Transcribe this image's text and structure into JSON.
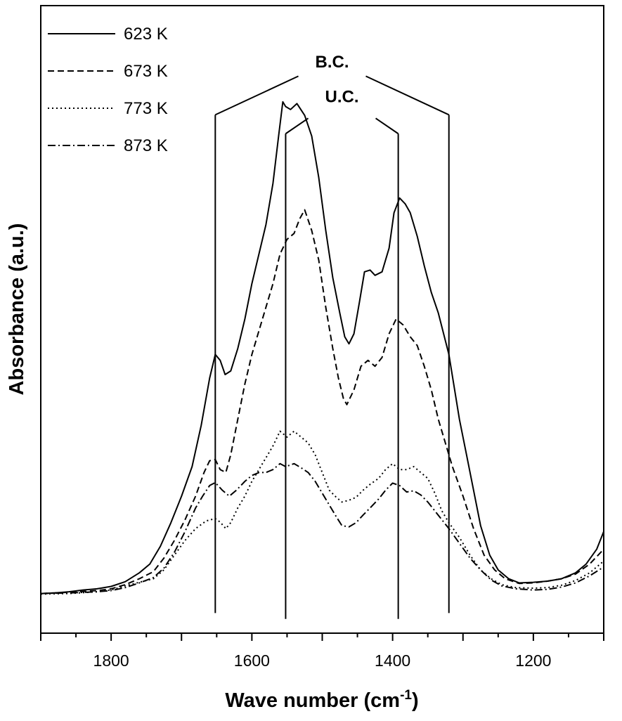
{
  "chart_data": {
    "type": "line",
    "xlabel": "Wave number (cm",
    "xlabel_sup": "-1",
    "xlabel_close": ")",
    "ylabel": "Absorbance (a.u.)",
    "xlim": [
      1900,
      1100
    ],
    "x_reversed": true,
    "xticks": [
      1800,
      1600,
      1400,
      1200
    ],
    "ylim": [
      0,
      100
    ],
    "y_ticks_labeled": false,
    "grid": false,
    "legend_position": "top-left",
    "series": [
      {
        "name": "623 K",
        "dash": "solid",
        "points": [
          [
            1900,
            3.5
          ],
          [
            1880,
            3.6
          ],
          [
            1860,
            3.8
          ],
          [
            1840,
            4.1
          ],
          [
            1820,
            4.3
          ],
          [
            1800,
            4.7
          ],
          [
            1780,
            5.5
          ],
          [
            1760,
            7.0
          ],
          [
            1745,
            8.5
          ],
          [
            1730,
            11.5
          ],
          [
            1715,
            15.5
          ],
          [
            1700,
            20.0
          ],
          [
            1685,
            25.0
          ],
          [
            1672,
            32.0
          ],
          [
            1660,
            40.0
          ],
          [
            1652,
            44.0
          ],
          [
            1645,
            43.0
          ],
          [
            1638,
            40.6
          ],
          [
            1630,
            41.2
          ],
          [
            1620,
            45.0
          ],
          [
            1610,
            50.0
          ],
          [
            1600,
            56.0
          ],
          [
            1590,
            61.0
          ],
          [
            1580,
            66.0
          ],
          [
            1570,
            73.0
          ],
          [
            1562,
            81.0
          ],
          [
            1556,
            86.8
          ],
          [
            1552,
            86.0
          ],
          [
            1545,
            85.5
          ],
          [
            1536,
            86.5
          ],
          [
            1525,
            84.5
          ],
          [
            1515,
            81.0
          ],
          [
            1505,
            74.0
          ],
          [
            1495,
            65.0
          ],
          [
            1485,
            57.0
          ],
          [
            1475,
            51.0
          ],
          [
            1468,
            47.0
          ],
          [
            1462,
            45.8
          ],
          [
            1455,
            47.5
          ],
          [
            1447,
            53.0
          ],
          [
            1440,
            58.0
          ],
          [
            1432,
            58.3
          ],
          [
            1425,
            57.4
          ],
          [
            1415,
            58.0
          ],
          [
            1405,
            62.0
          ],
          [
            1398,
            68.0
          ],
          [
            1390,
            70.5
          ],
          [
            1382,
            69.5
          ],
          [
            1375,
            68.0
          ],
          [
            1365,
            64.0
          ],
          [
            1355,
            59.0
          ],
          [
            1345,
            54.5
          ],
          [
            1335,
            51.0
          ],
          [
            1320,
            44.0
          ],
          [
            1305,
            33.0
          ],
          [
            1295,
            27.0
          ],
          [
            1285,
            21.0
          ],
          [
            1275,
            15.0
          ],
          [
            1262,
            10.0
          ],
          [
            1250,
            7.5
          ],
          [
            1235,
            6.0
          ],
          [
            1220,
            5.3
          ],
          [
            1200,
            5.4
          ],
          [
            1180,
            5.6
          ],
          [
            1160,
            6.0
          ],
          [
            1140,
            7.0
          ],
          [
            1125,
            8.5
          ],
          [
            1110,
            11.0
          ],
          [
            1100,
            14.0
          ]
        ]
      },
      {
        "name": "673 K",
        "dash": "dashed",
        "points": [
          [
            1900,
            3.5
          ],
          [
            1860,
            3.7
          ],
          [
            1820,
            4.0
          ],
          [
            1800,
            4.3
          ],
          [
            1780,
            5.0
          ],
          [
            1760,
            6.0
          ],
          [
            1740,
            7.2
          ],
          [
            1725,
            9.5
          ],
          [
            1710,
            12.5
          ],
          [
            1695,
            16.0
          ],
          [
            1680,
            20.0
          ],
          [
            1668,
            24.0
          ],
          [
            1660,
            26.0
          ],
          [
            1652,
            26.2
          ],
          [
            1645,
            24.5
          ],
          [
            1637,
            24.0
          ],
          [
            1630,
            27.0
          ],
          [
            1620,
            33.0
          ],
          [
            1610,
            39.0
          ],
          [
            1600,
            44.0
          ],
          [
            1590,
            48.0
          ],
          [
            1580,
            52.0
          ],
          [
            1570,
            56.0
          ],
          [
            1560,
            61.0
          ],
          [
            1550,
            63.5
          ],
          [
            1540,
            64.5
          ],
          [
            1532,
            67.0
          ],
          [
            1525,
            68.5
          ],
          [
            1515,
            65.0
          ],
          [
            1505,
            60.0
          ],
          [
            1495,
            52.0
          ],
          [
            1485,
            45.0
          ],
          [
            1477,
            40.0
          ],
          [
            1470,
            36.6
          ],
          [
            1465,
            35.5
          ],
          [
            1455,
            38.0
          ],
          [
            1445,
            42.0
          ],
          [
            1435,
            43.0
          ],
          [
            1425,
            42.0
          ],
          [
            1415,
            43.5
          ],
          [
            1405,
            47.5
          ],
          [
            1395,
            50.0
          ],
          [
            1385,
            49.0
          ],
          [
            1375,
            47.0
          ],
          [
            1365,
            45.5
          ],
          [
            1355,
            42.0
          ],
          [
            1345,
            38.0
          ],
          [
            1335,
            33.0
          ],
          [
            1325,
            29.0
          ],
          [
            1315,
            25.0
          ],
          [
            1300,
            20.0
          ],
          [
            1285,
            14.5
          ],
          [
            1270,
            10.0
          ],
          [
            1255,
            7.5
          ],
          [
            1240,
            6.0
          ],
          [
            1220,
            5.2
          ],
          [
            1200,
            5.3
          ],
          [
            1180,
            5.6
          ],
          [
            1160,
            6.0
          ],
          [
            1140,
            6.8
          ],
          [
            1120,
            8.5
          ],
          [
            1100,
            11.0
          ]
        ]
      },
      {
        "name": "773 K",
        "dash": "dotted",
        "points": [
          [
            1900,
            3.4
          ],
          [
            1860,
            3.5
          ],
          [
            1820,
            3.8
          ],
          [
            1800,
            4.1
          ],
          [
            1780,
            4.8
          ],
          [
            1760,
            5.4
          ],
          [
            1740,
            6.0
          ],
          [
            1725,
            7.5
          ],
          [
            1710,
            10.0
          ],
          [
            1695,
            12.5
          ],
          [
            1680,
            14.5
          ],
          [
            1665,
            15.8
          ],
          [
            1652,
            16.2
          ],
          [
            1645,
            15.6
          ],
          [
            1637,
            14.5
          ],
          [
            1630,
            15.5
          ],
          [
            1620,
            18.0
          ],
          [
            1610,
            20.0
          ],
          [
            1600,
            22.5
          ],
          [
            1590,
            24.5
          ],
          [
            1580,
            26.5
          ],
          [
            1570,
            28.5
          ],
          [
            1560,
            31.0
          ],
          [
            1550,
            30.0
          ],
          [
            1540,
            31.0
          ],
          [
            1530,
            30.0
          ],
          [
            1520,
            29.0
          ],
          [
            1510,
            27.0
          ],
          [
            1500,
            24.0
          ],
          [
            1490,
            21.0
          ],
          [
            1480,
            19.8
          ],
          [
            1472,
            19.0
          ],
          [
            1462,
            19.3
          ],
          [
            1452,
            19.8
          ],
          [
            1442,
            21.0
          ],
          [
            1432,
            22.0
          ],
          [
            1420,
            23.0
          ],
          [
            1410,
            24.5
          ],
          [
            1400,
            25.5
          ],
          [
            1390,
            24.5
          ],
          [
            1380,
            24.5
          ],
          [
            1370,
            25.0
          ],
          [
            1360,
            24.0
          ],
          [
            1350,
            23.0
          ],
          [
            1340,
            20.5
          ],
          [
            1330,
            17.5
          ],
          [
            1320,
            15.5
          ],
          [
            1305,
            13.0
          ],
          [
            1290,
            10.0
          ],
          [
            1275,
            7.5
          ],
          [
            1260,
            6.0
          ],
          [
            1245,
            5.0
          ],
          [
            1225,
            4.5
          ],
          [
            1200,
            4.4
          ],
          [
            1180,
            4.5
          ],
          [
            1160,
            4.9
          ],
          [
            1140,
            5.7
          ],
          [
            1120,
            7.0
          ],
          [
            1100,
            9.0
          ]
        ]
      },
      {
        "name": "873 K",
        "dash": "dashdot",
        "points": [
          [
            1900,
            3.5
          ],
          [
            1860,
            3.6
          ],
          [
            1820,
            3.8
          ],
          [
            1800,
            4.0
          ],
          [
            1780,
            4.5
          ],
          [
            1760,
            5.3
          ],
          [
            1740,
            6.2
          ],
          [
            1725,
            7.8
          ],
          [
            1710,
            10.5
          ],
          [
            1695,
            14.0
          ],
          [
            1680,
            18.0
          ],
          [
            1670,
            20.0
          ],
          [
            1660,
            21.8
          ],
          [
            1652,
            22.3
          ],
          [
            1642,
            21.0
          ],
          [
            1632,
            20.0
          ],
          [
            1622,
            21.0
          ],
          [
            1610,
            22.5
          ],
          [
            1600,
            23.5
          ],
          [
            1590,
            24.0
          ],
          [
            1580,
            24.0
          ],
          [
            1570,
            24.5
          ],
          [
            1560,
            25.5
          ],
          [
            1552,
            25.0
          ],
          [
            1540,
            25.5
          ],
          [
            1530,
            24.8
          ],
          [
            1520,
            24.0
          ],
          [
            1510,
            22.5
          ],
          [
            1500,
            20.5
          ],
          [
            1490,
            18.5
          ],
          [
            1480,
            16.5
          ],
          [
            1472,
            15.0
          ],
          [
            1462,
            14.8
          ],
          [
            1452,
            15.5
          ],
          [
            1442,
            16.8
          ],
          [
            1432,
            18.0
          ],
          [
            1420,
            19.5
          ],
          [
            1410,
            21.0
          ],
          [
            1400,
            22.2
          ],
          [
            1390,
            21.8
          ],
          [
            1380,
            20.7
          ],
          [
            1370,
            20.9
          ],
          [
            1360,
            20.2
          ],
          [
            1350,
            19.0
          ],
          [
            1340,
            17.5
          ],
          [
            1330,
            16.0
          ],
          [
            1320,
            14.5
          ],
          [
            1305,
            12.0
          ],
          [
            1290,
            9.5
          ],
          [
            1275,
            7.5
          ],
          [
            1260,
            5.8
          ],
          [
            1245,
            4.8
          ],
          [
            1225,
            4.3
          ],
          [
            1200,
            4.1
          ],
          [
            1180,
            4.2
          ],
          [
            1160,
            4.6
          ],
          [
            1140,
            5.3
          ],
          [
            1120,
            6.5
          ],
          [
            1100,
            8.0
          ]
        ]
      }
    ],
    "annotations": [
      {
        "label": "B.C.",
        "x_left": 1652,
        "x_right": 1320,
        "y_shoulder": 84.6,
        "y_peak": 93.8,
        "y_bottom": 0.2
      },
      {
        "label": "U.C.",
        "x_left": 1552,
        "x_right": 1392,
        "y_shoulder": 81.4,
        "y_peak": 87.9,
        "y_bottom": -0.8
      }
    ]
  }
}
